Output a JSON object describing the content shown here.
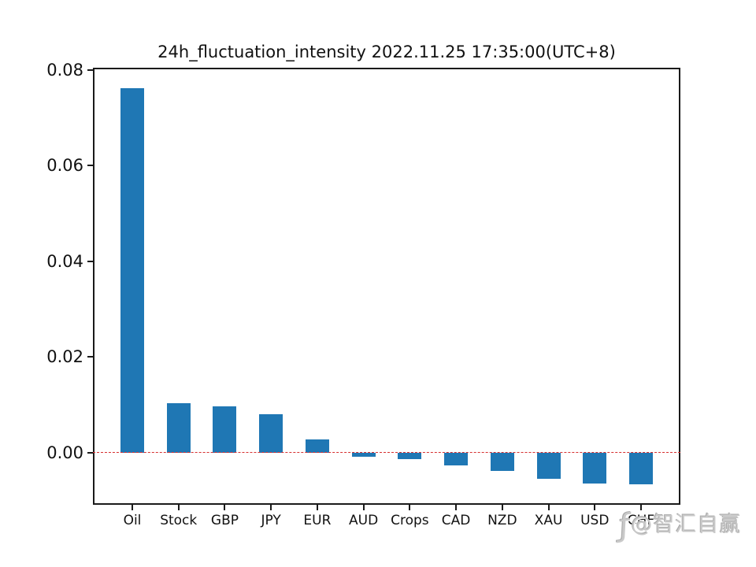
{
  "title": "24h_fluctuation_intensity 2022.11.25 17:35:00(UTC+8)",
  "chart_data": {
    "type": "bar",
    "title": "24h_fluctuation_intensity 2022.11.25 17:35:00(UTC+8)",
    "categories": [
      "Oil",
      "Stock",
      "GBP",
      "JPY",
      "EUR",
      "AUD",
      "Crops",
      "CAD",
      "NZD",
      "XAU",
      "USD",
      "CHF"
    ],
    "values": [
      0.0763,
      0.0104,
      0.0097,
      0.008,
      0.0027,
      -0.0008,
      -0.0013,
      -0.0026,
      -0.0038,
      -0.0054,
      -0.0065,
      -0.0067
    ],
    "xlabel": "",
    "ylabel": "",
    "ylim": [
      -0.0109,
      0.0805
    ],
    "yticks": [
      0.0,
      0.02,
      0.04,
      0.06,
      0.08
    ],
    "ytick_labels": [
      "0.00",
      "0.02",
      "0.04",
      "0.06",
      "0.08"
    ],
    "grid": false,
    "legend": null,
    "bar_color": "#1f77b4",
    "zero_line": {
      "value": 0,
      "color": "#d62f2f",
      "style": "dashed"
    }
  },
  "watermark": {
    "logo_glyph": "ƒ",
    "text": "@智汇自赢"
  }
}
